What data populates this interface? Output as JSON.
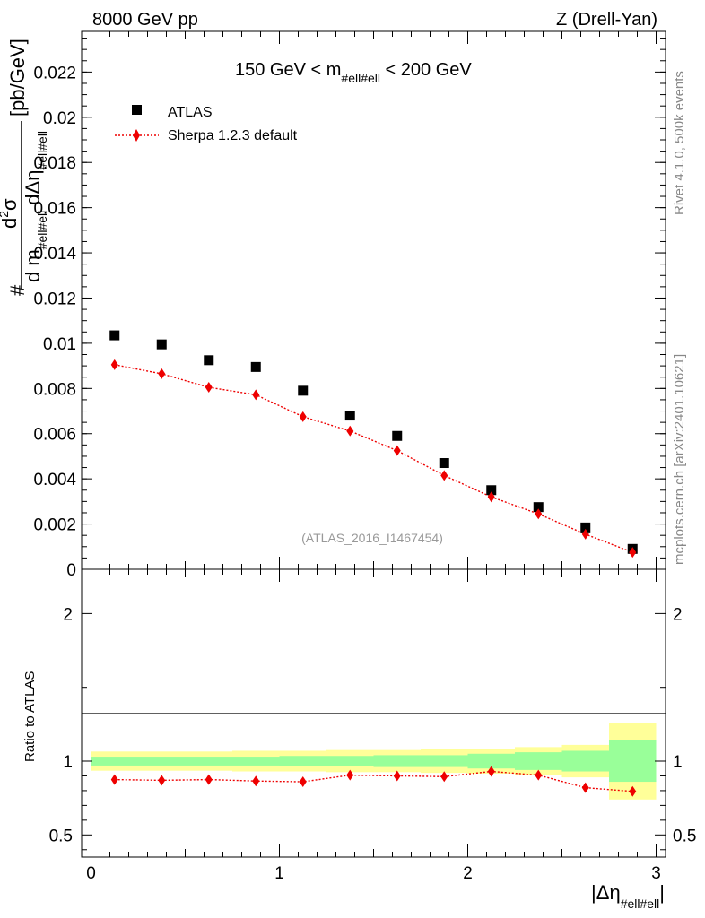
{
  "header": {
    "left": "8000 GeV pp",
    "right": "Z (Drell-Yan)"
  },
  "side": {
    "rivet": "Rivet 4.1.0,  500k events",
    "mcplots": "mcplots.cern.ch [arXiv:2401.10621]"
  },
  "chart_data": [
    {
      "panel": "main",
      "type": "scatter",
      "title": "150 GeV < m",
      "title_sub": "#ell#ell",
      "title_tail": " < 200 GeV",
      "ylabel_parts": [
        "#",
        "d",
        "2",
        "σ",
        "d m",
        "#ell#ell",
        "dΔη",
        "#ell#ell",
        "[pb/GeV]"
      ],
      "ylim": [
        0,
        0.0238
      ],
      "xlim": [
        -0.05,
        3.05
      ],
      "y_ticks": [
        {
          "v": 0,
          "label": "0"
        },
        {
          "v": 0.002,
          "label": "0.002"
        },
        {
          "v": 0.004,
          "label": "0.004"
        },
        {
          "v": 0.006,
          "label": "0.006"
        },
        {
          "v": 0.008,
          "label": "0.008"
        },
        {
          "v": 0.01,
          "label": "0.01"
        },
        {
          "v": 0.012,
          "label": "0.012"
        },
        {
          "v": 0.014,
          "label": "0.014"
        },
        {
          "v": 0.016,
          "label": "0.016"
        },
        {
          "v": 0.018,
          "label": "0.018"
        },
        {
          "v": 0.02,
          "label": "0.02"
        },
        {
          "v": 0.022,
          "label": "0.022"
        }
      ],
      "watermark": "(ATLAS_2016_I1467454)",
      "legend": [
        {
          "label": "ATLAS",
          "marker": "square",
          "color": "#000000"
        },
        {
          "label": "Sherpa 1.2.3 default",
          "marker": "diamond",
          "color": "#ee0000"
        }
      ],
      "x": [
        0.125,
        0.375,
        0.625,
        0.875,
        1.125,
        1.375,
        1.625,
        1.875,
        2.125,
        2.375,
        2.625,
        2.875
      ],
      "series": [
        {
          "name": "ATLAS",
          "values": [
            0.01035,
            0.00995,
            0.00925,
            0.00895,
            0.0079,
            0.0068,
            0.0059,
            0.0047,
            0.0035,
            0.00275,
            0.00185,
            0.0009
          ]
        },
        {
          "name": "Sherpa 1.2.3 default",
          "values": [
            0.00905,
            0.00865,
            0.00805,
            0.00772,
            0.00675,
            0.00612,
            0.00525,
            0.00415,
            0.0032,
            0.00245,
            0.00155,
            0.00075
          ]
        }
      ]
    },
    {
      "panel": "ratio",
      "type": "line",
      "ylabel": "Ratio to ATLAS",
      "ylim": [
        0.35,
        2.3
      ],
      "y_ticks": [
        {
          "v": 0.5,
          "label": "0.5"
        },
        {
          "v": 1,
          "label": "1"
        },
        {
          "v": 2,
          "label": "2"
        }
      ],
      "x_ticks": [
        {
          "v": 0,
          "label": "0"
        },
        {
          "v": 1,
          "label": "1"
        },
        {
          "v": 2,
          "label": "2"
        },
        {
          "v": 3,
          "label": "3"
        }
      ],
      "xlabel_parts": [
        "|Δη",
        "#ell#ell",
        "|"
      ],
      "bins": [
        0,
        0.25,
        0.5,
        0.75,
        1.0,
        1.25,
        1.5,
        1.75,
        2.0,
        2.25,
        2.5,
        2.75,
        3.0
      ],
      "band_stat": [
        0.03,
        0.03,
        0.03,
        0.03,
        0.035,
        0.035,
        0.04,
        0.04,
        0.05,
        0.06,
        0.07,
        0.14
      ],
      "band_total": [
        0.065,
        0.065,
        0.065,
        0.07,
        0.07,
        0.075,
        0.075,
        0.08,
        0.085,
        0.095,
        0.11,
        0.26
      ],
      "x": [
        0.125,
        0.375,
        0.625,
        0.875,
        1.125,
        1.375,
        1.625,
        1.875,
        2.125,
        2.375,
        2.625,
        2.875
      ],
      "ratio": [
        0.875,
        0.87,
        0.875,
        0.865,
        0.86,
        0.905,
        0.9,
        0.895,
        0.93,
        0.905,
        0.82,
        0.795
      ]
    }
  ]
}
